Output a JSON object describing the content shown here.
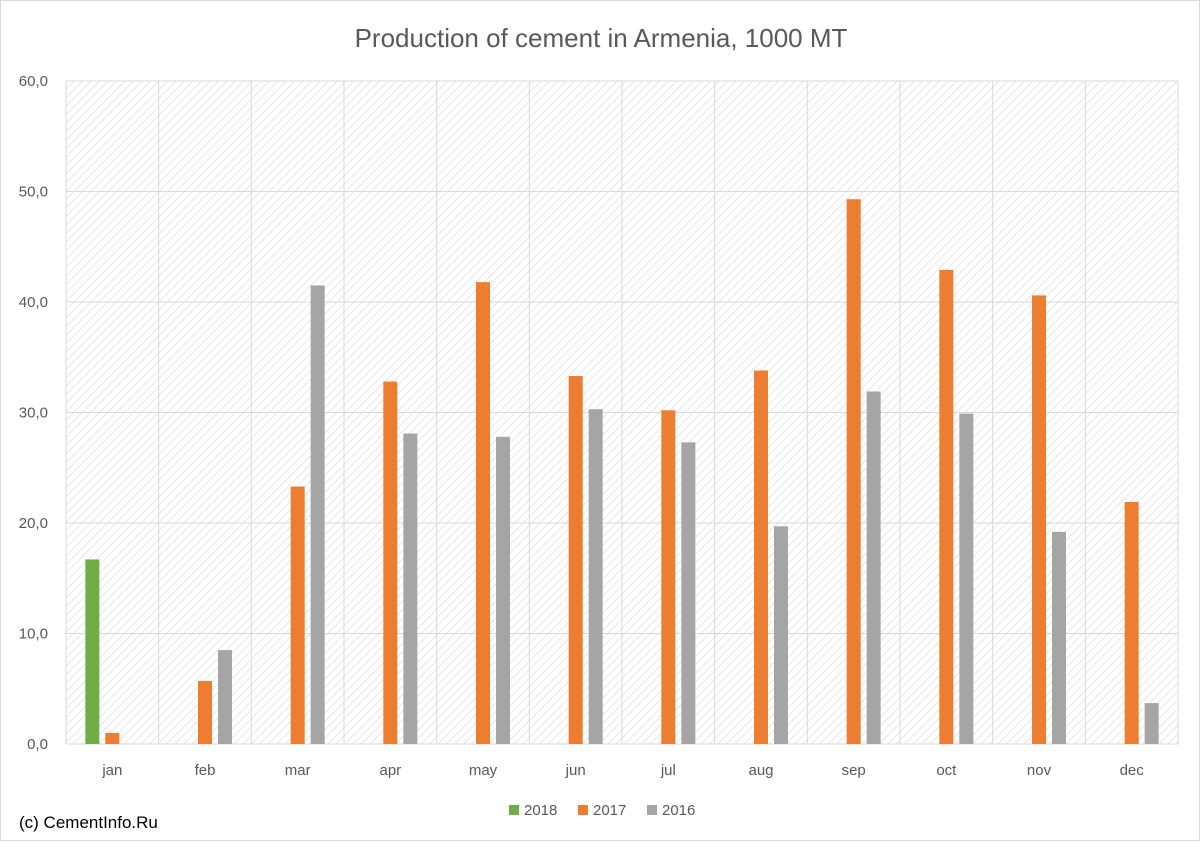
{
  "chart_data": {
    "type": "bar",
    "title": "Production of cement in Armenia, 1000 MT",
    "xlabel": "",
    "ylabel": "",
    "ylim": [
      0,
      60
    ],
    "yticks": [
      "0,0",
      "10,0",
      "20,0",
      "30,0",
      "40,0",
      "50,0",
      "60,0"
    ],
    "ytick_values": [
      0,
      10,
      20,
      30,
      40,
      50,
      60
    ],
    "categories": [
      "jan",
      "feb",
      "mar",
      "apr",
      "may",
      "jun",
      "jul",
      "aug",
      "sep",
      "oct",
      "nov",
      "dec"
    ],
    "series": [
      {
        "name": "2018",
        "color": "#70ad47",
        "values": [
          16.7,
          null,
          null,
          null,
          null,
          null,
          null,
          null,
          null,
          null,
          null,
          null
        ]
      },
      {
        "name": "2017",
        "color": "#ed7d31",
        "values": [
          1.0,
          5.7,
          23.3,
          32.8,
          41.8,
          33.3,
          30.2,
          33.8,
          49.3,
          42.9,
          40.6,
          21.9
        ]
      },
      {
        "name": "2016",
        "color": "#a5a5a5",
        "values": [
          null,
          8.5,
          41.5,
          28.1,
          27.8,
          30.3,
          27.3,
          19.7,
          31.9,
          29.9,
          19.2,
          3.7
        ]
      }
    ],
    "grid": true,
    "legend_position": "bottom"
  },
  "credit": "(c) CementInfo.Ru"
}
